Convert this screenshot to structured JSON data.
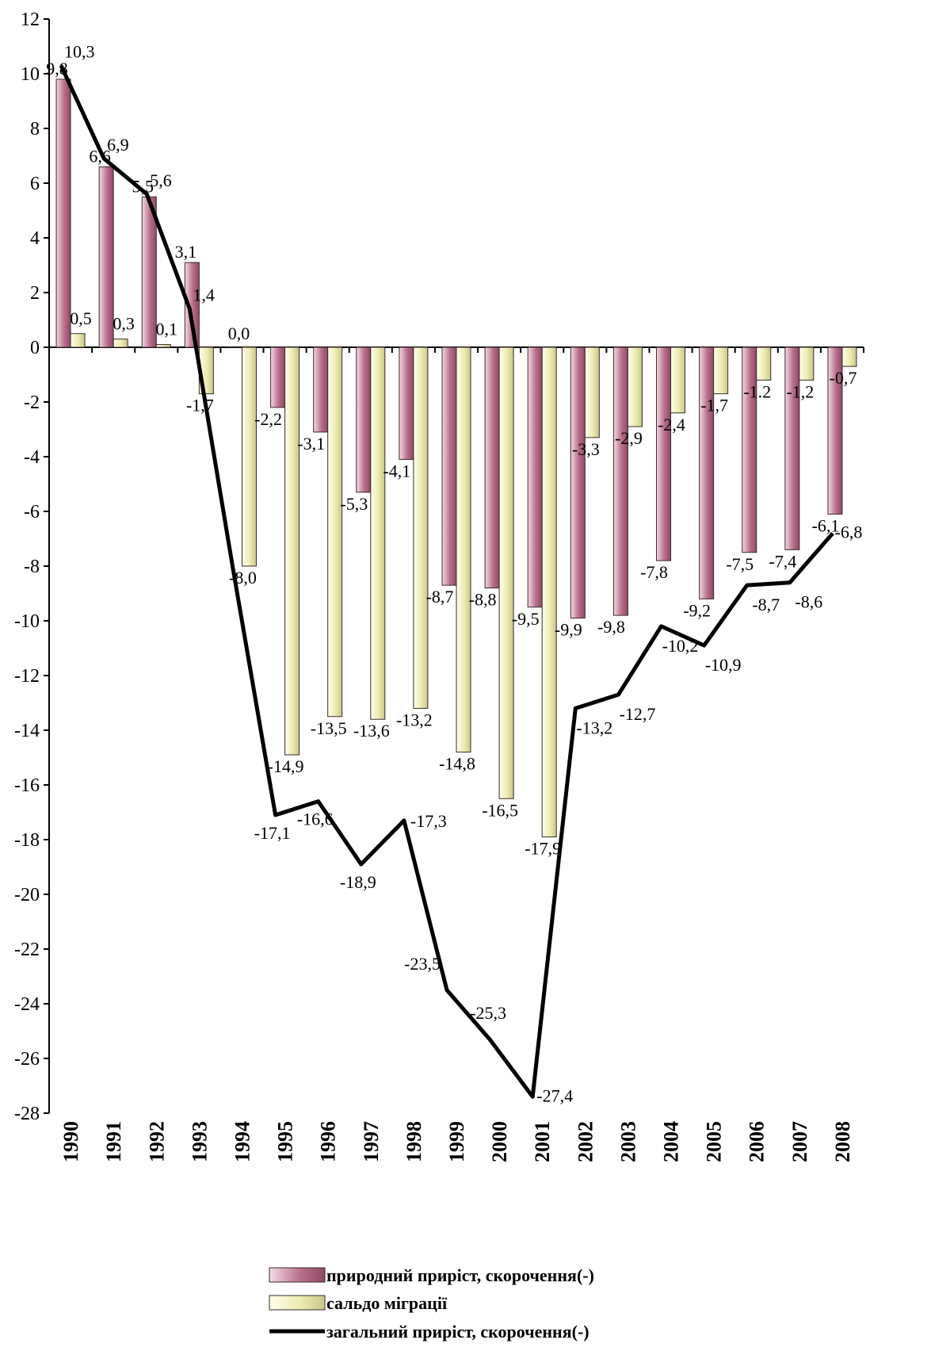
{
  "chart_data": {
    "type": "bar",
    "categories": [
      "1990",
      "1991",
      "1992",
      "1993",
      "1994",
      "1995",
      "1996",
      "1997",
      "1998",
      "1999",
      "2000",
      "2001",
      "2002",
      "2003",
      "2004",
      "2005",
      "2006",
      "2007",
      "2008"
    ],
    "series": [
      {
        "name": "природний приріст, скорочення(-)",
        "type": "bar",
        "color": "#a8607e",
        "values": [
          9.8,
          6.6,
          5.5,
          3.1,
          0.0,
          -2.2,
          -3.1,
          -5.3,
          -4.1,
          -8.7,
          -8.8,
          -9.5,
          -9.9,
          -9.8,
          -7.8,
          -9.2,
          -7.5,
          -7.4,
          -6.1
        ],
        "labels": [
          "9,8",
          "6,6",
          "5,5",
          "3,1",
          "0,0",
          "-2,2",
          "-3,1",
          "-5,3",
          "-4,1",
          "-8,7",
          "-8,8",
          "-9,5",
          "-9,9",
          "-9,8",
          "-7,8",
          "-9,2",
          "-7,5",
          "-7,4",
          "-6,1"
        ]
      },
      {
        "name": "сальдо міграції",
        "type": "bar",
        "color": "#e6e3a4",
        "values": [
          0.5,
          0.3,
          0.1,
          -1.7,
          -8.0,
          -14.9,
          -13.5,
          -13.6,
          -13.2,
          -14.8,
          -16.5,
          -17.9,
          -3.3,
          -2.9,
          -2.4,
          -1.7,
          -1.2,
          -1.2,
          -0.7
        ],
        "labels": [
          "0,5",
          "0,3",
          "0,1",
          "-1,7",
          "-8,0",
          "-14,9",
          "-13,5",
          "-13,6",
          "-13,2",
          "-14,8",
          "-16,5",
          "-17,9",
          "-3,3",
          "-2,9",
          "-2,4",
          "-1,7",
          "-1.2",
          "-1,2",
          "-0,7"
        ]
      },
      {
        "name": "загальний приріст, скорочення(-)",
        "type": "line",
        "color": "#000000",
        "values": [
          10.3,
          6.9,
          5.6,
          1.4,
          -8.0,
          -17.1,
          -16.6,
          -18.9,
          -17.3,
          -23.5,
          -25.3,
          -27.4,
          -13.2,
          -12.7,
          -10.2,
          -10.9,
          -8.7,
          -8.6,
          -6.8
        ],
        "labels": [
          "10,3",
          "6,9",
          "5,6",
          "1,4",
          "",
          "-17,1",
          "-16,6",
          "-18,9",
          "-17,3",
          "-23,5",
          "-25,3",
          "-27,4",
          "-13,2",
          "-12,7",
          "-10,2",
          "-10,9",
          "-8,7",
          "-8,6",
          "-6,8"
        ]
      }
    ],
    "ylim": [
      -28,
      12
    ],
    "yticks": [
      "12",
      "10",
      "8",
      "6",
      "4",
      "2",
      "0",
      "-2",
      "-4",
      "-6",
      "-8",
      "-10",
      "-12",
      "-14",
      "-16",
      "-18",
      "-20",
      "-22",
      "-24",
      "-26",
      "-28"
    ],
    "title": "",
    "xlabel": "",
    "ylabel": "",
    "grid": false,
    "legend_position": "bottom"
  }
}
